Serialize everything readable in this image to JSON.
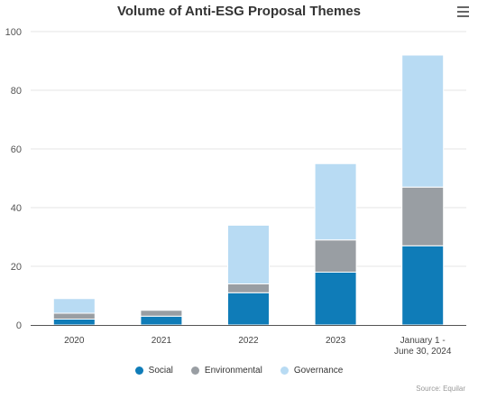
{
  "chart_data": {
    "type": "bar",
    "stacked": true,
    "title": "Volume of Anti-ESG Proposal Themes",
    "categories": [
      "2020",
      "2021",
      "2022",
      "2023",
      "January 1 - June 30, 2024"
    ],
    "category_label_lines": [
      [
        "2020"
      ],
      [
        "2021"
      ],
      [
        "2022"
      ],
      [
        "2023"
      ],
      [
        "January 1 -",
        "June 30, 2024"
      ]
    ],
    "series": [
      {
        "name": "Social",
        "color": "#0f7cb8",
        "values": [
          2,
          3,
          11,
          18,
          27
        ]
      },
      {
        "name": "Environmental",
        "color": "#999ea3",
        "values": [
          2,
          2,
          3,
          11,
          20
        ]
      },
      {
        "name": "Governance",
        "color": "#b8dbf3",
        "values": [
          5,
          0,
          20,
          26,
          45
        ]
      }
    ],
    "ylim": [
      0,
      100
    ],
    "yticks": [
      0,
      20,
      40,
      60,
      80,
      100
    ],
    "grid": true,
    "legend_position": "bottom-center",
    "source": "Source: Equilar"
  },
  "menu_icon": "hamburger-menu-icon"
}
